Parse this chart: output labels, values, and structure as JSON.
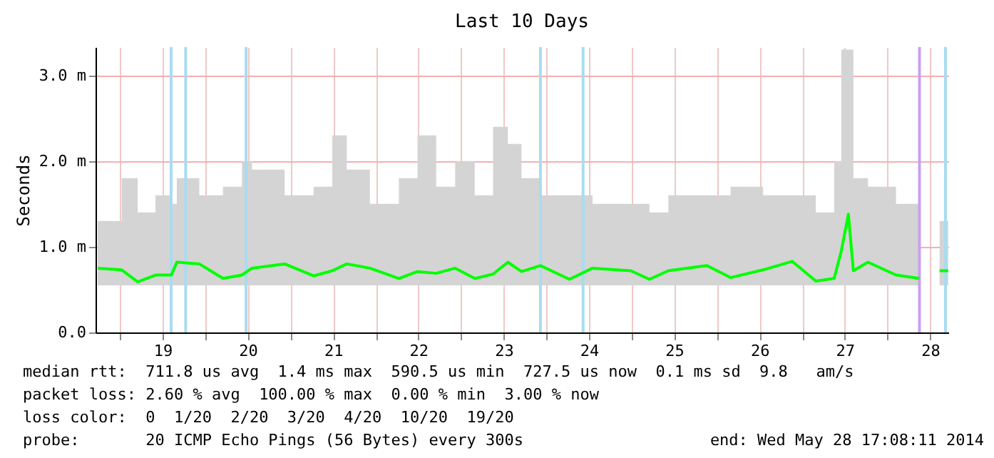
{
  "chart_data": {
    "type": "line",
    "title": "Last 10 Days",
    "ylabel": "Seconds",
    "x": [
      "2014-05-18T17:45",
      "2014-05-19T00:30",
      "2014-05-19T05:00",
      "2014-05-19T10:00",
      "2014-05-19T14:30",
      "2014-05-19T16:00",
      "2014-05-19T22:20",
      "2014-05-20T05:00",
      "2014-05-20T10:20",
      "2014-05-20T13:10",
      "2014-05-20T22:20",
      "2014-05-21T06:30",
      "2014-05-21T11:45",
      "2014-05-21T15:50",
      "2014-05-21T22:20",
      "2014-05-22T06:30",
      "2014-05-22T11:45",
      "2014-05-22T17:00",
      "2014-05-22T22:20",
      "2014-05-23T03:50",
      "2014-05-23T09:00",
      "2014-05-23T13:10",
      "2014-05-23T17:00",
      "2014-05-23T22:20",
      "2014-05-24T06:30",
      "2014-05-24T13:00",
      "2014-05-24T23:45",
      "2014-05-25T05:00",
      "2014-05-25T10:20",
      "2014-05-25T21:10",
      "2014-05-26T03:50",
      "2014-05-26T13:00",
      "2014-05-26T21:10",
      "2014-05-27T03:50",
      "2014-05-27T09:00",
      "2014-05-27T11:00",
      "2014-05-27T13:00",
      "2014-05-27T14:24",
      "2014-05-27T18:30",
      "2014-05-28T02:24",
      "2014-05-28T09:00",
      "2014-05-28T12:00",
      "2014-05-28T14:40",
      "2014-05-28T17:05"
    ],
    "series": [
      {
        "color": "#00ff00",
        "values": [
          0.75,
          0.73,
          0.59,
          0.67,
          0.67,
          0.82,
          0.8,
          0.63,
          0.67,
          0.75,
          0.8,
          0.66,
          0.72,
          0.8,
          0.75,
          0.63,
          0.71,
          0.69,
          0.75,
          0.63,
          0.68,
          0.82,
          0.71,
          0.78,
          0.62,
          0.75,
          0.72,
          0.62,
          0.72,
          0.78,
          0.64,
          0.73,
          0.83,
          0.6,
          0.63,
          0.95,
          1.38,
          0.72,
          0.82,
          0.67,
          0.63,
          null,
          0.72,
          0.72
        ],
        "lower": [
          0.55,
          0.55,
          0.55,
          0.55,
          0.55,
          0.55,
          0.55,
          0.55,
          0.55,
          0.55,
          0.55,
          0.55,
          0.55,
          0.55,
          0.55,
          0.55,
          0.55,
          0.55,
          0.55,
          0.55,
          0.55,
          0.55,
          0.55,
          0.55,
          0.55,
          0.55,
          0.55,
          0.55,
          0.55,
          0.55,
          0.55,
          0.55,
          0.55,
          0.55,
          0.55,
          0.55,
          0.55,
          0.55,
          0.55,
          0.55,
          0.55,
          null,
          0.55,
          0.55
        ],
        "upper": [
          1.3,
          1.8,
          1.4,
          1.6,
          1.5,
          1.8,
          1.6,
          1.7,
          2.0,
          1.9,
          1.6,
          1.7,
          2.3,
          1.9,
          1.5,
          1.8,
          2.3,
          1.7,
          2.0,
          1.6,
          2.4,
          2.2,
          1.8,
          1.6,
          1.6,
          1.5,
          1.5,
          1.4,
          1.6,
          1.6,
          1.7,
          1.6,
          1.6,
          1.4,
          2.0,
          3.3,
          3.3,
          1.8,
          1.7,
          1.5,
          1.3,
          null,
          1.3,
          1.3
        ]
      }
    ],
    "xlim": [
      "2014-05-18T17:08",
      "2014-05-28T17:08"
    ],
    "xticks": [
      {
        "value": "2014-05-19T00:00",
        "label": null
      },
      {
        "value": "2014-05-19T12:00",
        "label": "19"
      },
      {
        "value": "2014-05-20T00:00",
        "label": null
      },
      {
        "value": "2014-05-20T12:00",
        "label": "20"
      },
      {
        "value": "2014-05-21T00:00",
        "label": null
      },
      {
        "value": "2014-05-21T12:00",
        "label": "21"
      },
      {
        "value": "2014-05-22T00:00",
        "label": null
      },
      {
        "value": "2014-05-22T12:00",
        "label": "22"
      },
      {
        "value": "2014-05-23T00:00",
        "label": null
      },
      {
        "value": "2014-05-23T12:00",
        "label": "23"
      },
      {
        "value": "2014-05-24T00:00",
        "label": null
      },
      {
        "value": "2014-05-24T12:00",
        "label": "24"
      },
      {
        "value": "2014-05-25T00:00",
        "label": null
      },
      {
        "value": "2014-05-25T12:00",
        "label": "25"
      },
      {
        "value": "2014-05-26T00:00",
        "label": null
      },
      {
        "value": "2014-05-26T12:00",
        "label": "26"
      },
      {
        "value": "2014-05-27T00:00",
        "label": null
      },
      {
        "value": "2014-05-27T12:00",
        "label": "27"
      },
      {
        "value": "2014-05-28T00:00",
        "label": null
      },
      {
        "value": "2014-05-28T12:00",
        "label": "28"
      }
    ],
    "ylim": [
      0,
      3.33
    ],
    "yticks": [
      {
        "value": 0,
        "label": "0.0"
      },
      {
        "value": 1,
        "label": "1.0 m"
      },
      {
        "value": 2,
        "label": "2.0 m"
      },
      {
        "value": 3,
        "label": "3.0 m"
      }
    ],
    "grid": true,
    "ref_lines": [
      {
        "axis": "x",
        "value": "2014-05-19T14:24",
        "color": "#a8dcf0"
      },
      {
        "axis": "x",
        "value": "2014-05-19T18:30",
        "color": "#a8dcf0"
      },
      {
        "axis": "x",
        "value": "2014-05-20T11:30",
        "color": "#a8dcf0"
      },
      {
        "axis": "x",
        "value": "2014-05-23T22:20",
        "color": "#a8dcf0"
      },
      {
        "axis": "x",
        "value": "2014-05-24T10:20",
        "color": "#a8dcf0"
      },
      {
        "axis": "x",
        "value": "2014-05-28T09:00",
        "color": "#c8a0f0"
      },
      {
        "axis": "x",
        "value": "2014-05-28T16:20",
        "color": "#a8dcf0"
      }
    ],
    "annotations": [
      "median rtt:  711.8 us avg  1.4 ms max  590.5 us min  727.5 us now  0.1 ms sd  9.8   am/s",
      "packet loss: 2.60 % avg  100.00 % max  0.00 % min  3.00 % now",
      "loss color:  0  1/20  2/20  3/20  4/20  10/20  19/20",
      "probe:       20 ICMP Echo Pings (56 Bytes) every 300s",
      "end: Wed May 28 17:08:11 2014"
    ]
  }
}
